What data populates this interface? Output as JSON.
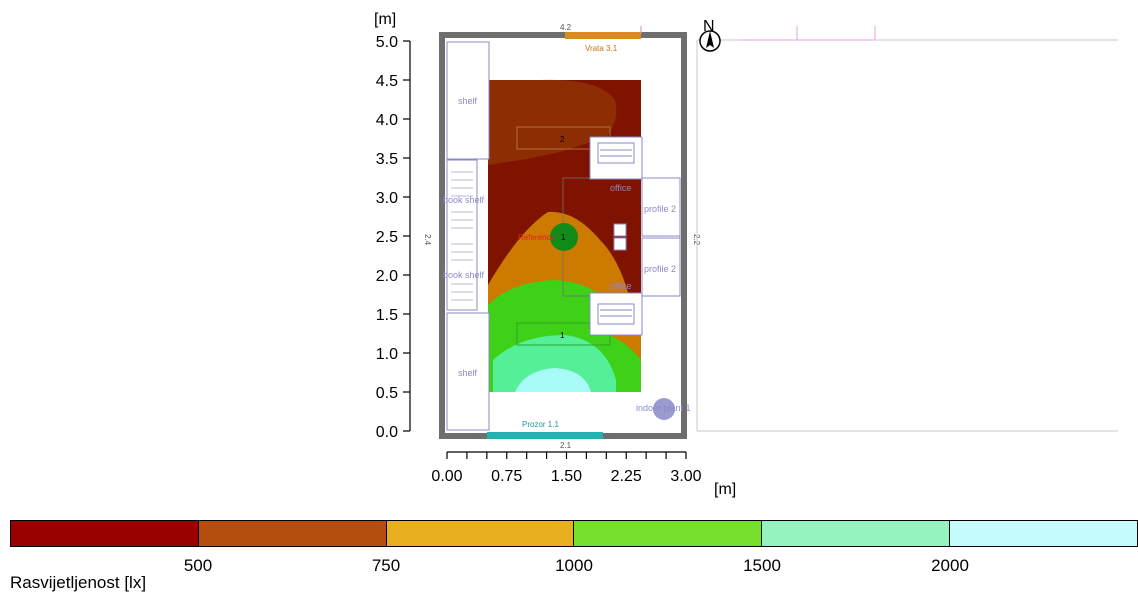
{
  "axes": {
    "y_unit": "[m]",
    "x_unit": "[m]",
    "y_ticks": [
      "5.0",
      "4.5",
      "4.0",
      "3.5",
      "3.0",
      "2.5",
      "2.0",
      "1.5",
      "1.0",
      "0.5",
      "0.0"
    ],
    "x_ticks": [
      "0.00",
      "0.75",
      "1.50",
      "2.25",
      "3.00"
    ]
  },
  "compass": {
    "label": "N"
  },
  "room": {
    "door": "Vrata 3.1",
    "window": "Prozor 1.1",
    "dim_top": "4.2",
    "dim_left": "2.4",
    "dim_right": "2.2",
    "dim_bottom": "2.1",
    "zone_2": "2",
    "zone_1": "1",
    "luminaire_1": "1",
    "shelf_top": "shelf",
    "shelf_bottom": "shelf",
    "book_shelf_1": "book shelf",
    "book_shelf_2": "book shelf",
    "office_1": "office",
    "office_2": "office",
    "profile_1": "profile 2",
    "profile_2": "profile 2",
    "reference": "Reference",
    "indoor_plant": "indoor plant 1"
  },
  "legend": {
    "title": "Rasvijetljenost [lx]",
    "ticks": [
      "500",
      "750",
      "1000",
      "1500",
      "2000"
    ],
    "colors": [
      "#990000",
      "#b54d0e",
      "#e8b020",
      "#77e02c",
      "#97f2c2",
      "#c6fdfc"
    ]
  },
  "isolux_colors": {
    "below_500": "#801200",
    "500_750": "#a8470a",
    "750_1000": "#cd7a00",
    "1000_1500": "#3fd018",
    "1500_2000": "#55ef98",
    "above_2000": "#a8fbf8"
  },
  "palette": {
    "wall": "#6e6e6e",
    "door": "#d98b20",
    "window": "#22b3b0",
    "furniture": "#8a8ac8",
    "luminaire": "#118a18"
  }
}
